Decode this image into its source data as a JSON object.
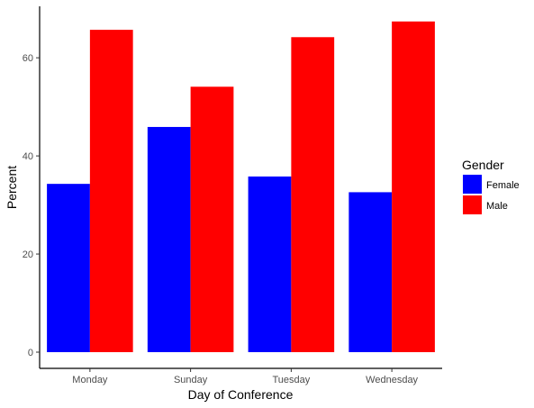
{
  "chart_data": {
    "type": "bar",
    "categories": [
      "Monday",
      "Sunday",
      "Tuesday",
      "Wednesday"
    ],
    "series": [
      {
        "name": "Female",
        "values": [
          34.3,
          45.9,
          35.8,
          32.6
        ],
        "color": "#0000ff"
      },
      {
        "name": "Male",
        "values": [
          65.7,
          54.1,
          64.2,
          67.4
        ],
        "color": "#ff0000"
      }
    ],
    "xlabel": "Day of Conference",
    "ylabel": "Percent",
    "ylim": [
      0,
      70
    ],
    "yticks": [
      0,
      20,
      40,
      60
    ],
    "grid": false,
    "legend": {
      "title": "Gender",
      "position": "right"
    }
  }
}
